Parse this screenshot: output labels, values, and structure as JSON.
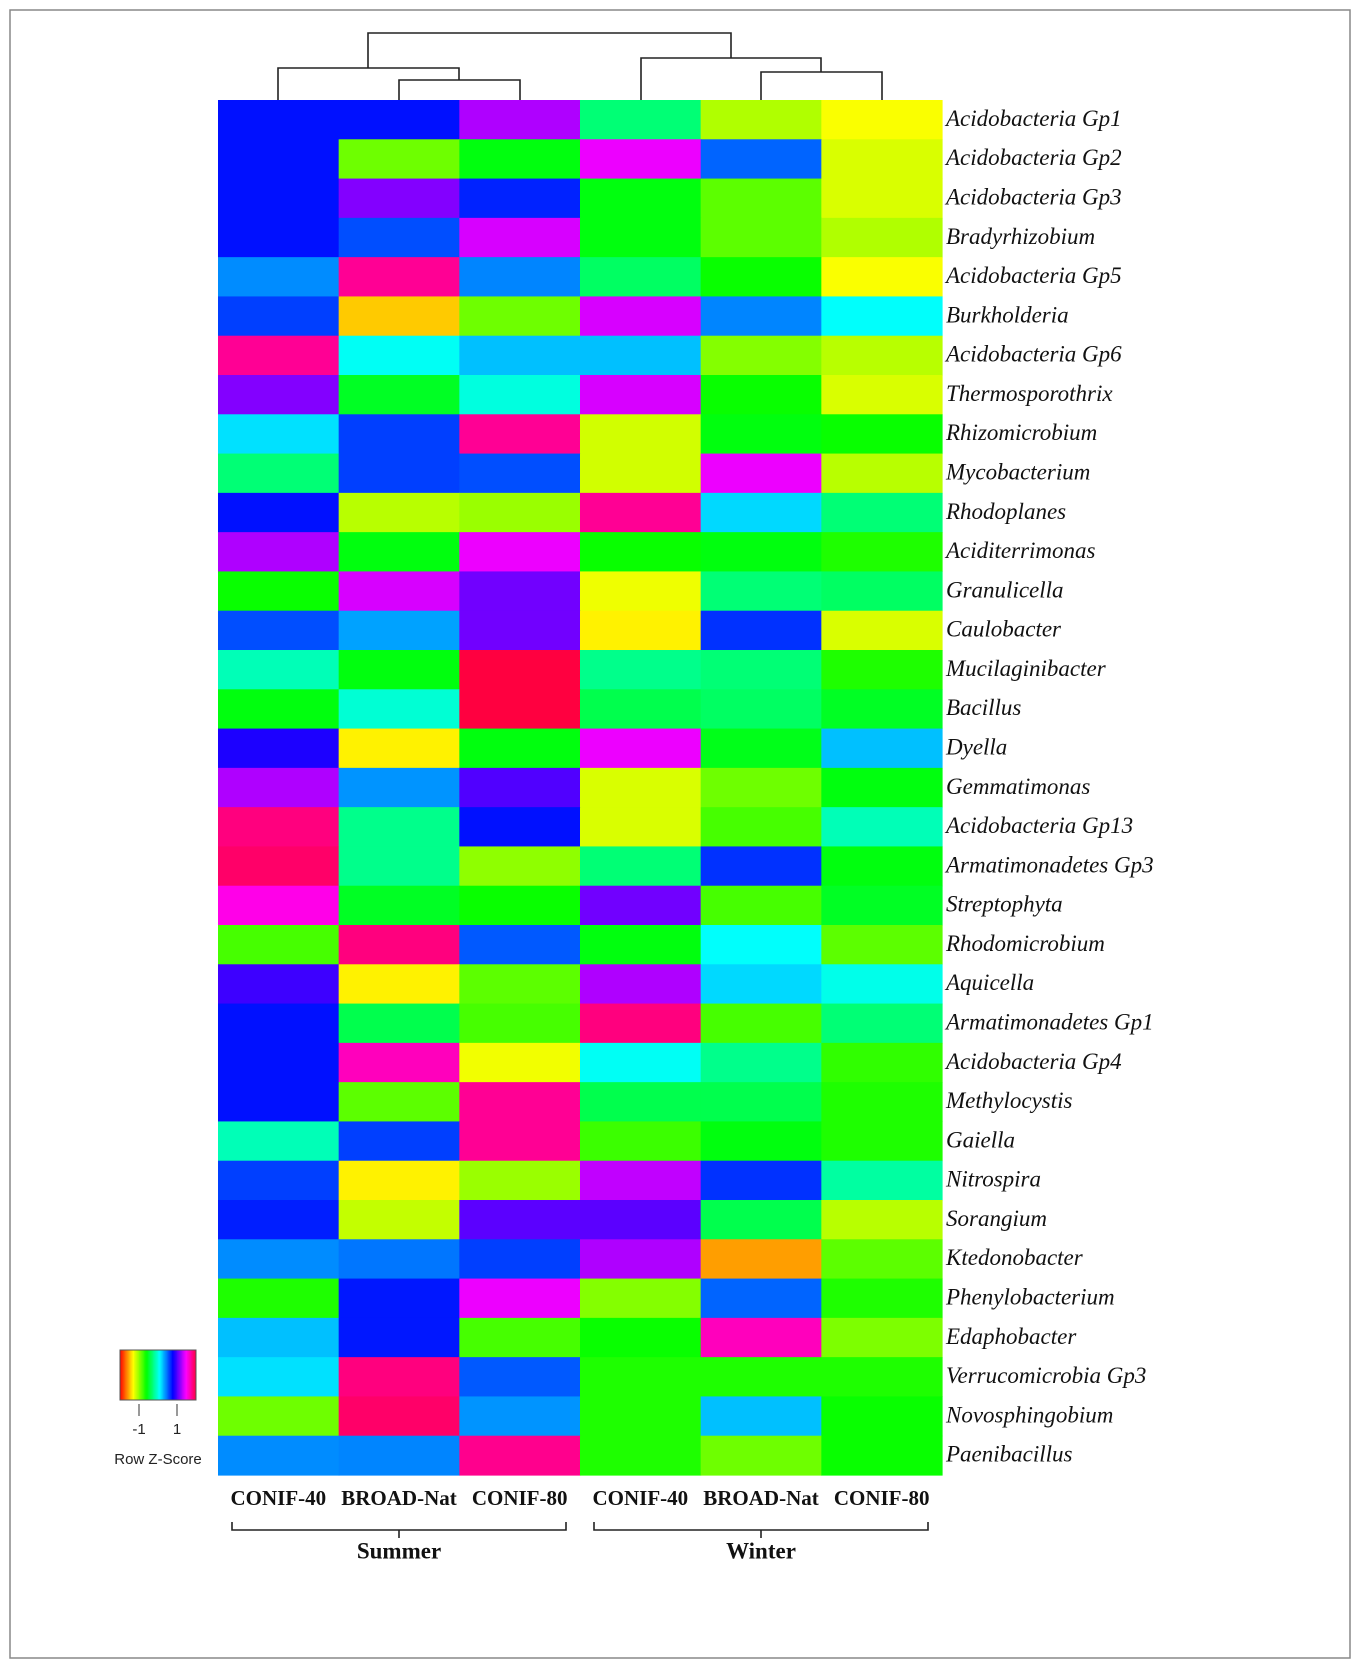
{
  "chart_data": {
    "type": "heatmap",
    "colormap": "rainbow",
    "columns": [
      "CONIF-40",
      "BROAD-Nat",
      "CONIF-80",
      "CONIF-40",
      "BROAD-Nat",
      "CONIF-80"
    ],
    "column_groups": [
      {
        "label": "Summer",
        "size": 3
      },
      {
        "label": "Winter",
        "size": 3
      }
    ],
    "rows": [
      "Acidobacteria Gp1",
      "Acidobacteria Gp2",
      "Acidobacteria Gp3",
      "Bradyrhizobium",
      "Acidobacteria Gp5",
      "Burkholderia",
      "Acidobacteria Gp6",
      "Thermosporothrix",
      "Rhizomicrobium",
      "Mycobacterium",
      "Rhodoplanes",
      "Aciditerrimonas",
      "Granulicella",
      "Caulobacter",
      "Mucilaginibacter",
      "Bacillus",
      "Dyella",
      "Gemmatimonas",
      "Acidobacteria Gp13",
      "Armatimonadetes Gp3",
      "Streptophyta",
      "Rhodomicrobium",
      "Aquicella",
      "Armatimonadetes Gp1",
      "Acidobacteria Gp4",
      "Methylocystis",
      "Gaiella",
      "Nitrospira",
      "Sorangium",
      "Ktedonobacter",
      "Phenylobacterium",
      "Edaphobacter",
      "Verrucomicrobia Gp3",
      "Novosphingobium",
      "Paenibacillus"
    ],
    "values": [
      [
        0.74,
        0.74,
        1.26,
        -0.29,
        -1.09,
        -1.29
      ],
      [
        0.74,
        -0.91,
        -0.57,
        1.43,
        0.51,
        -1.2
      ],
      [
        0.74,
        1.14,
        0.69,
        -0.57,
        -0.86,
        -1.2
      ],
      [
        0.74,
        0.57,
        1.37,
        -0.57,
        -0.86,
        -1.09
      ],
      [
        0.4,
        1.77,
        0.42,
        -0.34,
        -0.63,
        -1.29
      ],
      [
        0.61,
        -1.45,
        -0.91,
        1.37,
        0.42,
        0.08
      ],
      [
        1.77,
        0.06,
        0.26,
        0.26,
        -0.97,
        -1.11
      ],
      [
        1.14,
        -0.51,
        0,
        1.37,
        -0.63,
        -1.2
      ],
      [
        0.17,
        0.61,
        1.77,
        -1.18,
        -0.57,
        -0.63
      ],
      [
        -0.29,
        0.61,
        0.57,
        -1.18,
        1.43,
        -1.11
      ],
      [
        0.74,
        -1.11,
        -1.03,
        1.77,
        0.19,
        -0.29
      ],
      [
        1.26,
        -0.57,
        1.43,
        -0.63,
        -0.57,
        -0.69
      ],
      [
        -0.63,
        1.37,
        1.09,
        -1.26,
        -0.29,
        -0.34
      ],
      [
        0.57,
        0.34,
        1.09,
        -1.34,
        0.65,
        -1.2
      ],
      [
        -0.11,
        -0.57,
        2.0,
        -0.23,
        -0.29,
        -0.69
      ],
      [
        -0.57,
        -0.03,
        2.0,
        -0.4,
        -0.34,
        -0.51
      ],
      [
        0.86,
        -1.34,
        -0.57,
        1.43,
        -0.54,
        0.26
      ],
      [
        1.26,
        0.38,
        1.0,
        -1.2,
        -0.91,
        -0.57
      ],
      [
        1.83,
        -0.23,
        0.74,
        -1.2,
        -0.8,
        -0.11
      ],
      [
        1.89,
        -0.23,
        -1.0,
        -0.29,
        0.65,
        -0.57
      ],
      [
        1.54,
        -0.51,
        -0.63,
        1.09,
        -0.8,
        -0.51
      ],
      [
        -0.8,
        1.83,
        0.54,
        -0.57,
        0.08,
        -0.86
      ],
      [
        0.95,
        -1.34,
        -0.86,
        1.26,
        0.19,
        0.03
      ],
      [
        0.74,
        -0.4,
        -0.8,
        1.83,
        -0.8,
        -0.29
      ],
      [
        0.74,
        1.66,
        -1.27,
        0.06,
        -0.23,
        -0.74
      ],
      [
        0.74,
        -0.86,
        1.77,
        -0.4,
        -0.4,
        -0.69
      ],
      [
        -0.11,
        0.61,
        1.77,
        -0.77,
        -0.57,
        -0.69
      ],
      [
        0.61,
        -1.34,
        -1.03,
        1.31,
        0.65,
        -0.17
      ],
      [
        0.7,
        -1.14,
        1.03,
        1.03,
        -0.4,
        -1.11
      ],
      [
        0.4,
        0.46,
        0.61,
        1.26,
        -1.57,
        -0.86
      ],
      [
        -0.69,
        0.72,
        1.43,
        -0.97,
        0.51,
        -0.69
      ],
      [
        0.26,
        0.72,
        -0.8,
        -0.63,
        1.66,
        -0.95
      ],
      [
        0.17,
        1.83,
        0.54,
        -0.69,
        -0.69,
        -0.69
      ],
      [
        -0.91,
        1.89,
        0.38,
        -0.69,
        0.26,
        -0.63
      ],
      [
        0.4,
        0.42,
        1.79,
        -0.69,
        -0.91,
        -0.63
      ]
    ],
    "zlim": [
      -2,
      2
    ],
    "zticks": [
      -1,
      1
    ],
    "legend_title": "Row Z-Score"
  }
}
